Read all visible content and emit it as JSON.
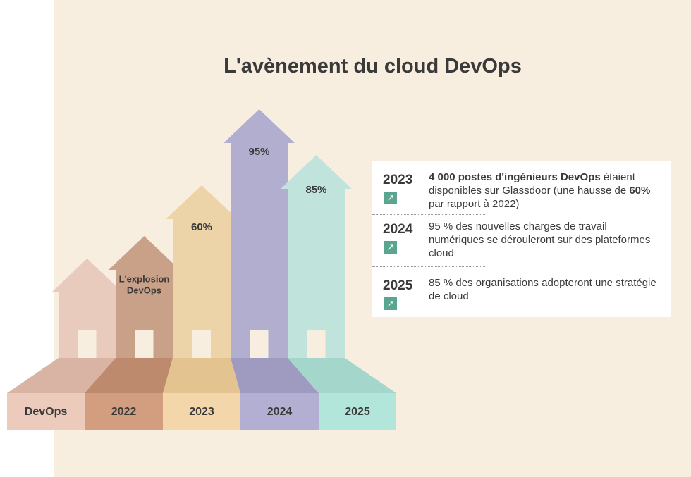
{
  "title": "L'avènement du cloud DevOps",
  "arrows": [
    {
      "label": "DevOps",
      "annotation": null
    },
    {
      "label": "2022",
      "annotation": [
        "L'explosion",
        "DevOps"
      ]
    },
    {
      "label": "2023",
      "annotation": "60%"
    },
    {
      "label": "2024",
      "annotation": "95%"
    },
    {
      "label": "2025",
      "annotation": "85%"
    }
  ],
  "facts": [
    {
      "year": "2023",
      "text": [
        "4 000 postes d'ingénieurs DevOps",
        " étaient disponibles sur Glassdoor (une hausse de ",
        "60%",
        " par rapport à 2022)"
      ]
    },
    {
      "year": "2024",
      "text": [
        "95 % des nouvelles charges de travail numériques se dérouleront sur des plateformes cloud"
      ]
    },
    {
      "year": "2025",
      "text": [
        "85 % des organisations adopteront une stratégie de cloud"
      ]
    }
  ]
}
